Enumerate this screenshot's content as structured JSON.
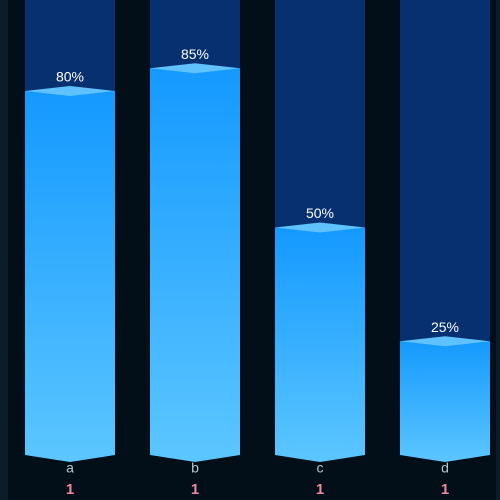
{
  "chart_data": {
    "type": "bar",
    "categories": [
      "a",
      "b",
      "c",
      "d"
    ],
    "values": [
      80,
      85,
      50,
      25
    ],
    "value_labels": [
      "80%",
      "85%",
      "50%",
      "25%"
    ],
    "counts": [
      1,
      1,
      1,
      1
    ],
    "ylim": [
      0,
      100
    ],
    "color": "#1a9dff"
  }
}
